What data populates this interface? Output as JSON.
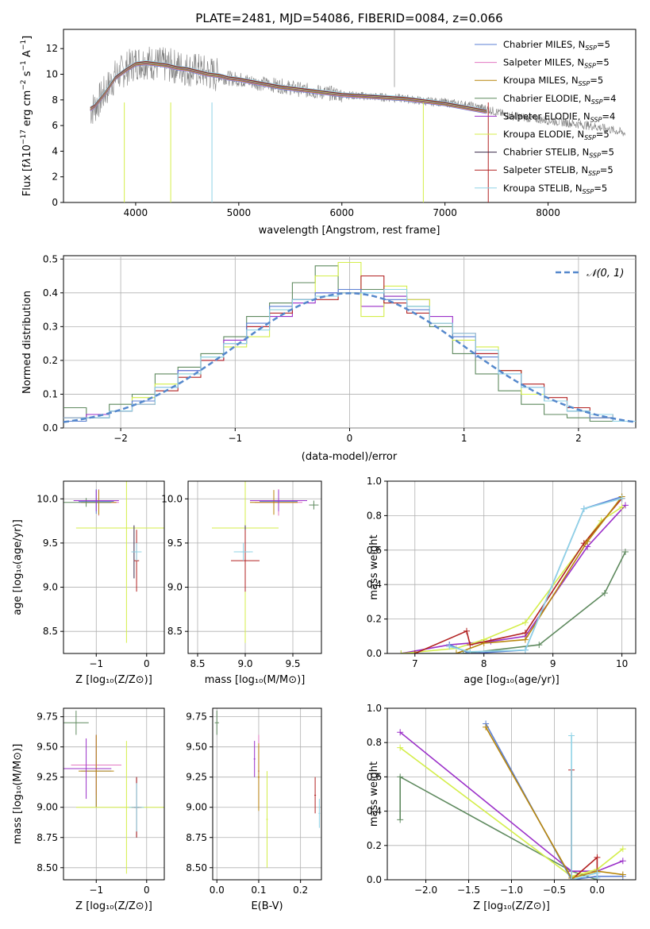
{
  "figure": {
    "title": "PLATE=2481, MJD=54086, FIBERID=0084, z=0.066"
  },
  "series_styles": [
    {
      "name": "Chabrier MILES",
      "nssp": "5",
      "color": "#5b7fd4"
    },
    {
      "name": "Salpeter MILES",
      "nssp": "5",
      "color": "#e377c2"
    },
    {
      "name": "Kroupa MILES",
      "nssp": "5",
      "color": "#b8860b"
    },
    {
      "name": "Chabrier ELODIE",
      "nssp": "4",
      "color": "#5f8a5f"
    },
    {
      "name": "Salpeter ELODIE",
      "nssp": "4",
      "color": "#9b30c9"
    },
    {
      "name": "Kroupa ELODIE",
      "nssp": "5",
      "color": "#d4ee4a"
    },
    {
      "name": "Chabrier STELIB",
      "nssp": "5",
      "color": "#3a2a4a"
    },
    {
      "name": "Salpeter STELIB",
      "nssp": "5",
      "color": "#b22222"
    },
    {
      "name": "Kroupa STELIB",
      "nssp": "5",
      "color": "#8fd3e6"
    }
  ],
  "chart_data": [
    {
      "id": "spectrum",
      "type": "line",
      "title": "PLATE=2481, MJD=54086, FIBERID=0084, z=0.066",
      "xlabel": "wavelength [Angstrom, rest frame]",
      "ylabel": "Flux [fλ 10⁻¹⁷ erg cm⁻² s⁻¹ A⁻¹]",
      "xlim": [
        3300,
        8850
      ],
      "ylim": [
        0,
        13.5
      ],
      "xticks": [
        4000,
        5000,
        6000,
        7000,
        8000
      ],
      "yticks": [
        0,
        2,
        4,
        6,
        8,
        10,
        12
      ],
      "legend_position": "top-right",
      "data_color": "#808080",
      "data": {
        "x": [
          3560,
          3600,
          3700,
          3800,
          3900,
          4000,
          4100,
          4200,
          4300,
          4400,
          4500,
          4600,
          4700,
          4800,
          4900,
          5000,
          5200,
          5400,
          5600,
          5800,
          6000,
          6200,
          6400,
          6600,
          6800,
          7000,
          7200,
          7400,
          7600,
          7800,
          8000,
          8200,
          8400,
          8600,
          8750
        ],
        "y": [
          7.2,
          7.4,
          8.6,
          9.8,
          10.4,
          10.9,
          11.0,
          10.8,
          10.7,
          10.6,
          10.4,
          10.3,
          10.1,
          9.9,
          9.7,
          9.6,
          9.3,
          9.1,
          8.8,
          8.6,
          8.4,
          8.3,
          8.2,
          8.1,
          7.9,
          7.8,
          7.6,
          7.3,
          6.8,
          6.6,
          6.4,
          6.2,
          6.0,
          5.7,
          5.4
        ]
      },
      "model": {
        "x": [
          3560,
          3600,
          3700,
          3800,
          3900,
          4000,
          4100,
          4200,
          4300,
          4400,
          4500,
          4600,
          4700,
          4800,
          4900,
          5000,
          5200,
          5400,
          5600,
          5800,
          6000,
          6200,
          6400,
          6600,
          6800,
          7000,
          7200,
          7400
        ],
        "y": [
          7.3,
          7.5,
          8.5,
          9.7,
          10.3,
          10.8,
          10.9,
          10.8,
          10.7,
          10.5,
          10.4,
          10.2,
          10.0,
          9.9,
          9.7,
          9.6,
          9.3,
          9.0,
          8.8,
          8.6,
          8.4,
          8.3,
          8.2,
          8.1,
          7.9,
          7.7,
          7.4,
          7.1
        ]
      }
    },
    {
      "id": "residual-histogram",
      "type": "line",
      "xlabel": "(data-model)/error",
      "ylabel": "Normed distribution",
      "xlim": [
        -2.5,
        2.5
      ],
      "ylim": [
        0,
        0.51
      ],
      "xticks": [
        -2,
        -1,
        0,
        1,
        2
      ],
      "yticks": [
        0.0,
        0.1,
        0.2,
        0.3,
        0.4,
        0.5
      ],
      "grid": true,
      "legend_position": "top-right",
      "legend": [
        "𝒩(0, 1)"
      ],
      "normal_color": "#5588cc",
      "hist": {
        "x": [
          -2.5,
          -2.3,
          -2.1,
          -1.9,
          -1.7,
          -1.5,
          -1.3,
          -1.1,
          -0.9,
          -0.7,
          -0.5,
          -0.3,
          -0.1,
          0.1,
          0.3,
          0.5,
          0.7,
          0.9,
          1.1,
          1.3,
          1.5,
          1.7,
          1.9,
          2.1,
          2.3
        ],
        "series": [
          {
            "name": "Chabrier ELODIE",
            "values": [
              0.06,
              0.03,
              0.07,
              0.1,
              0.16,
              0.18,
              0.22,
              0.27,
              0.33,
              0.37,
              0.43,
              0.48,
              0.4,
              0.41,
              0.39,
              0.36,
              0.3,
              0.22,
              0.16,
              0.11,
              0.07,
              0.04,
              0.03,
              0.02,
              0.02
            ]
          },
          {
            "name": "Salpeter ELODIE",
            "values": [
              0.03,
              0.04,
              0.05,
              0.08,
              0.12,
              0.17,
              0.2,
              0.26,
              0.3,
              0.33,
              0.37,
              0.4,
              0.41,
              0.36,
              0.39,
              0.38,
              0.33,
              0.28,
              0.22,
              0.17,
              0.12,
              0.08,
              0.05,
              0.03,
              0.02
            ]
          },
          {
            "name": "Kroupa ELODIE",
            "values": [
              0.02,
              0.03,
              0.05,
              0.09,
              0.13,
              0.16,
              0.21,
              0.24,
              0.27,
              0.35,
              0.38,
              0.45,
              0.49,
              0.33,
              0.42,
              0.38,
              0.31,
              0.26,
              0.24,
              0.17,
              0.1,
              0.08,
              0.05,
              0.03,
              0.02
            ]
          },
          {
            "name": "Salpeter STELIB",
            "values": [
              0.03,
              0.03,
              0.05,
              0.07,
              0.11,
              0.15,
              0.2,
              0.25,
              0.3,
              0.34,
              0.38,
              0.38,
              0.4,
              0.45,
              0.37,
              0.34,
              0.31,
              0.28,
              0.22,
              0.17,
              0.13,
              0.09,
              0.06,
              0.04,
              0.02
            ]
          },
          {
            "name": "Chabrier MILES",
            "values": [
              0.02,
              0.03,
              0.05,
              0.08,
              0.12,
              0.17,
              0.21,
              0.25,
              0.31,
              0.36,
              0.38,
              0.4,
              0.41,
              0.4,
              0.38,
              0.35,
              0.31,
              0.27,
              0.21,
              0.16,
              0.12,
              0.08,
              0.05,
              0.03,
              0.02
            ]
          },
          {
            "name": "Kroupa STELIB",
            "values": [
              0.03,
              0.03,
              0.05,
              0.07,
              0.12,
              0.16,
              0.21,
              0.25,
              0.29,
              0.35,
              0.38,
              0.39,
              0.4,
              0.4,
              0.41,
              0.36,
              0.31,
              0.28,
              0.23,
              0.16,
              0.12,
              0.08,
              0.05,
              0.04,
              0.02
            ]
          }
        ]
      }
    },
    {
      "id": "age-vs-Z",
      "type": "scatter",
      "xlabel": "Z [log₁₀(Z/Z⊙)]",
      "ylabel": "age  [log₁₀(age/yr)]",
      "xlim": [
        -1.65,
        0.35
      ],
      "ylim": [
        8.25,
        10.2
      ],
      "xticks": [
        "-1",
        "0"
      ],
      "yticks": [
        "8.5",
        "9.0",
        "9.5",
        "10.0"
      ]
    },
    {
      "id": "age-vs-mass",
      "type": "scatter",
      "xlabel": "mass [log₁₀(M/M⊙)]",
      "xlim": [
        8.4,
        9.8
      ],
      "ylim": [
        8.25,
        10.2
      ],
      "xticks": [
        "8.5",
        "9.0",
        "9.5"
      ],
      "yticks": [
        "8.5",
        "9.0",
        "9.5",
        "10.0"
      ]
    },
    {
      "id": "weight-vs-age",
      "type": "line",
      "xlabel": "age  [log₁₀(age/yr)]",
      "ylabel": "mass weight",
      "xlim": [
        6.6,
        10.2
      ],
      "ylim": [
        0,
        1.0
      ],
      "xticks": [
        "7",
        "8",
        "9",
        "10"
      ],
      "yticks": [
        "0.0",
        "0.2",
        "0.4",
        "0.6",
        "0.8",
        "1.0"
      ],
      "grid": true,
      "series": [
        {
          "name": "Chabrier ELODIE",
          "points": [
            [
              6.8,
              0.0
            ],
            [
              7.7,
              0.0
            ],
            [
              8.8,
              0.05
            ],
            [
              9.75,
              0.35
            ],
            [
              10.05,
              0.59
            ]
          ]
        },
        {
          "name": "Salpeter ELODIE",
          "points": [
            [
              6.8,
              0.0
            ],
            [
              7.5,
              0.05
            ],
            [
              8.1,
              0.07
            ],
            [
              8.6,
              0.1
            ],
            [
              9.5,
              0.62
            ],
            [
              10.05,
              0.86
            ]
          ]
        },
        {
          "name": "Kroupa ELODIE",
          "points": [
            [
              6.8,
              0.0
            ],
            [
              7.6,
              0.03
            ],
            [
              8.0,
              0.08
            ],
            [
              8.6,
              0.18
            ],
            [
              9.7,
              0.77
            ],
            [
              10.0,
              0.85
            ]
          ]
        },
        {
          "name": "Salpeter STELIB",
          "points": [
            [
              7.0,
              0.0
            ],
            [
              7.75,
              0.13
            ],
            [
              7.8,
              0.05
            ],
            [
              8.6,
              0.12
            ],
            [
              9.45,
              0.64
            ],
            [
              10.0,
              0.9
            ]
          ]
        },
        {
          "name": "Chabrier MILES",
          "points": [
            [
              7.5,
              0.05
            ],
            [
              7.8,
              0.0
            ],
            [
              8.6,
              0.02
            ],
            [
              9.45,
              0.84
            ],
            [
              10.0,
              0.91
            ]
          ]
        },
        {
          "name": "Kroupa MILES",
          "points": [
            [
              7.6,
              0.0
            ],
            [
              8.0,
              0.06
            ],
            [
              8.6,
              0.08
            ],
            [
              9.5,
              0.65
            ],
            [
              10.0,
              0.91
            ]
          ]
        },
        {
          "name": "Kroupa STELIB",
          "points": [
            [
              7.5,
              0.04
            ],
            [
              7.8,
              0.01
            ],
            [
              8.6,
              0.02
            ],
            [
              9.45,
              0.84
            ],
            [
              10.0,
              0.9
            ]
          ]
        }
      ]
    },
    {
      "id": "mass-vs-Z",
      "type": "scatter",
      "xlabel": "Z [log₁₀(Z/Z⊙)]",
      "ylabel": "mass [log₁₀(M/M⊙)]",
      "xlim": [
        -1.65,
        0.35
      ],
      "ylim": [
        8.4,
        9.82
      ],
      "xticks": [
        "-1",
        "0"
      ],
      "yticks": [
        "8.50",
        "8.75",
        "9.00",
        "9.25",
        "9.50",
        "9.75"
      ]
    },
    {
      "id": "mass-vs-EBV",
      "type": "scatter",
      "xlabel": "E(B-V)",
      "xlim": [
        -0.01,
        0.25
      ],
      "ylim": [
        8.4,
        9.82
      ],
      "xticks": [
        "0.0",
        "0.1",
        "0.2"
      ],
      "yticks": [
        "8.50",
        "8.75",
        "9.00",
        "9.25",
        "9.50",
        "9.75"
      ]
    },
    {
      "id": "weight-vs-Z",
      "type": "line",
      "xlabel": "Z [log₁₀(Z/Z⊙)]",
      "ylabel": "mass weight",
      "xlim": [
        -2.45,
        0.45
      ],
      "ylim": [
        0,
        1.0
      ],
      "xticks": [
        "−2.0",
        "−1.5",
        "−1.0",
        "−0.5",
        "0.0"
      ],
      "yticks": [
        "0.0",
        "0.2",
        "0.4",
        "0.6",
        "0.8",
        "1.0"
      ],
      "grid": true,
      "series": [
        {
          "name": "Chabrier ELODIE",
          "points": [
            [
              -2.3,
              0.35
            ],
            [
              -2.3,
              0.6
            ],
            [
              -0.3,
              0.05
            ],
            [
              0.0,
              0.0
            ]
          ]
        },
        {
          "name": "Salpeter ELODIE",
          "points": [
            [
              -2.3,
              0.86
            ],
            [
              -0.3,
              0.05
            ],
            [
              0.0,
              0.05
            ],
            [
              0.3,
              0.11
            ]
          ]
        },
        {
          "name": "Kroupa ELODIE",
          "points": [
            [
              -2.3,
              0.77
            ],
            [
              -0.3,
              0.02
            ],
            [
              0.0,
              0.06
            ],
            [
              0.3,
              0.18
            ]
          ]
        },
        {
          "name": "Salpeter STELIB",
          "points": [
            [
              -0.3,
              0.64
            ],
            [
              -0.3,
              0.0
            ],
            [
              0.0,
              0.13
            ],
            [
              0.0,
              0.0
            ]
          ]
        },
        {
          "name": "Chabrier MILES",
          "points": [
            [
              -1.3,
              0.91
            ],
            [
              -0.3,
              0.0
            ],
            [
              0.0,
              0.02
            ],
            [
              0.3,
              0.02
            ]
          ]
        },
        {
          "name": "Kroupa MILES",
          "points": [
            [
              -1.3,
              0.89
            ],
            [
              -0.3,
              0.01
            ],
            [
              0.0,
              0.05
            ],
            [
              0.3,
              0.03
            ]
          ]
        },
        {
          "name": "Kroupa STELIB",
          "points": [
            [
              -0.3,
              0.84
            ],
            [
              -0.3,
              0.0
            ],
            [
              0.0,
              0.04
            ],
            [
              0.0,
              0.01
            ]
          ]
        }
      ]
    }
  ]
}
